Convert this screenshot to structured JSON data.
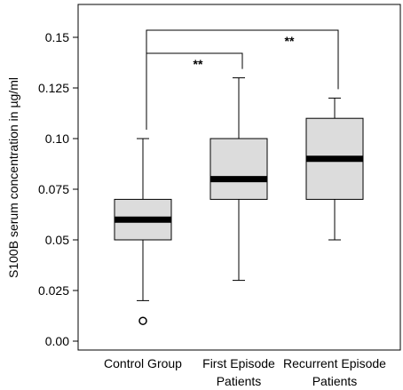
{
  "chart_data": {
    "type": "boxplot",
    "ylabel": "S100B serum concentration in µg/ml",
    "ylim": [
      0,
      0.16
    ],
    "yticks": [
      "0.00",
      "0.025",
      "0.05",
      "0.075",
      "0.10",
      "0.125",
      "0.15"
    ],
    "ytick_values": [
      0,
      0.025,
      0.05,
      0.075,
      0.1,
      0.125,
      0.15
    ],
    "grid": false,
    "box_color": "#dcdcdc",
    "categories": [
      {
        "lines": [
          "Control Group"
        ]
      },
      {
        "lines": [
          "First Episode",
          "Patients"
        ]
      },
      {
        "lines": [
          "Recurrent Episode",
          "Patients"
        ]
      }
    ],
    "boxes": [
      {
        "whisker_low": 0.02,
        "q1": 0.05,
        "median": 0.06,
        "q3": 0.07,
        "whisker_high": 0.1,
        "outliers": [
          0.01
        ]
      },
      {
        "whisker_low": 0.03,
        "q1": 0.07,
        "median": 0.08,
        "q3": 0.1,
        "whisker_high": 0.13,
        "outliers": []
      },
      {
        "whisker_low": 0.05,
        "q1": 0.07,
        "median": 0.09,
        "q3": 0.11,
        "whisker_high": 0.12,
        "outliers": []
      }
    ],
    "significance": [
      {
        "from": 0,
        "to": 1,
        "label": "**"
      },
      {
        "from": 0,
        "to": 2,
        "label": "**"
      }
    ]
  }
}
